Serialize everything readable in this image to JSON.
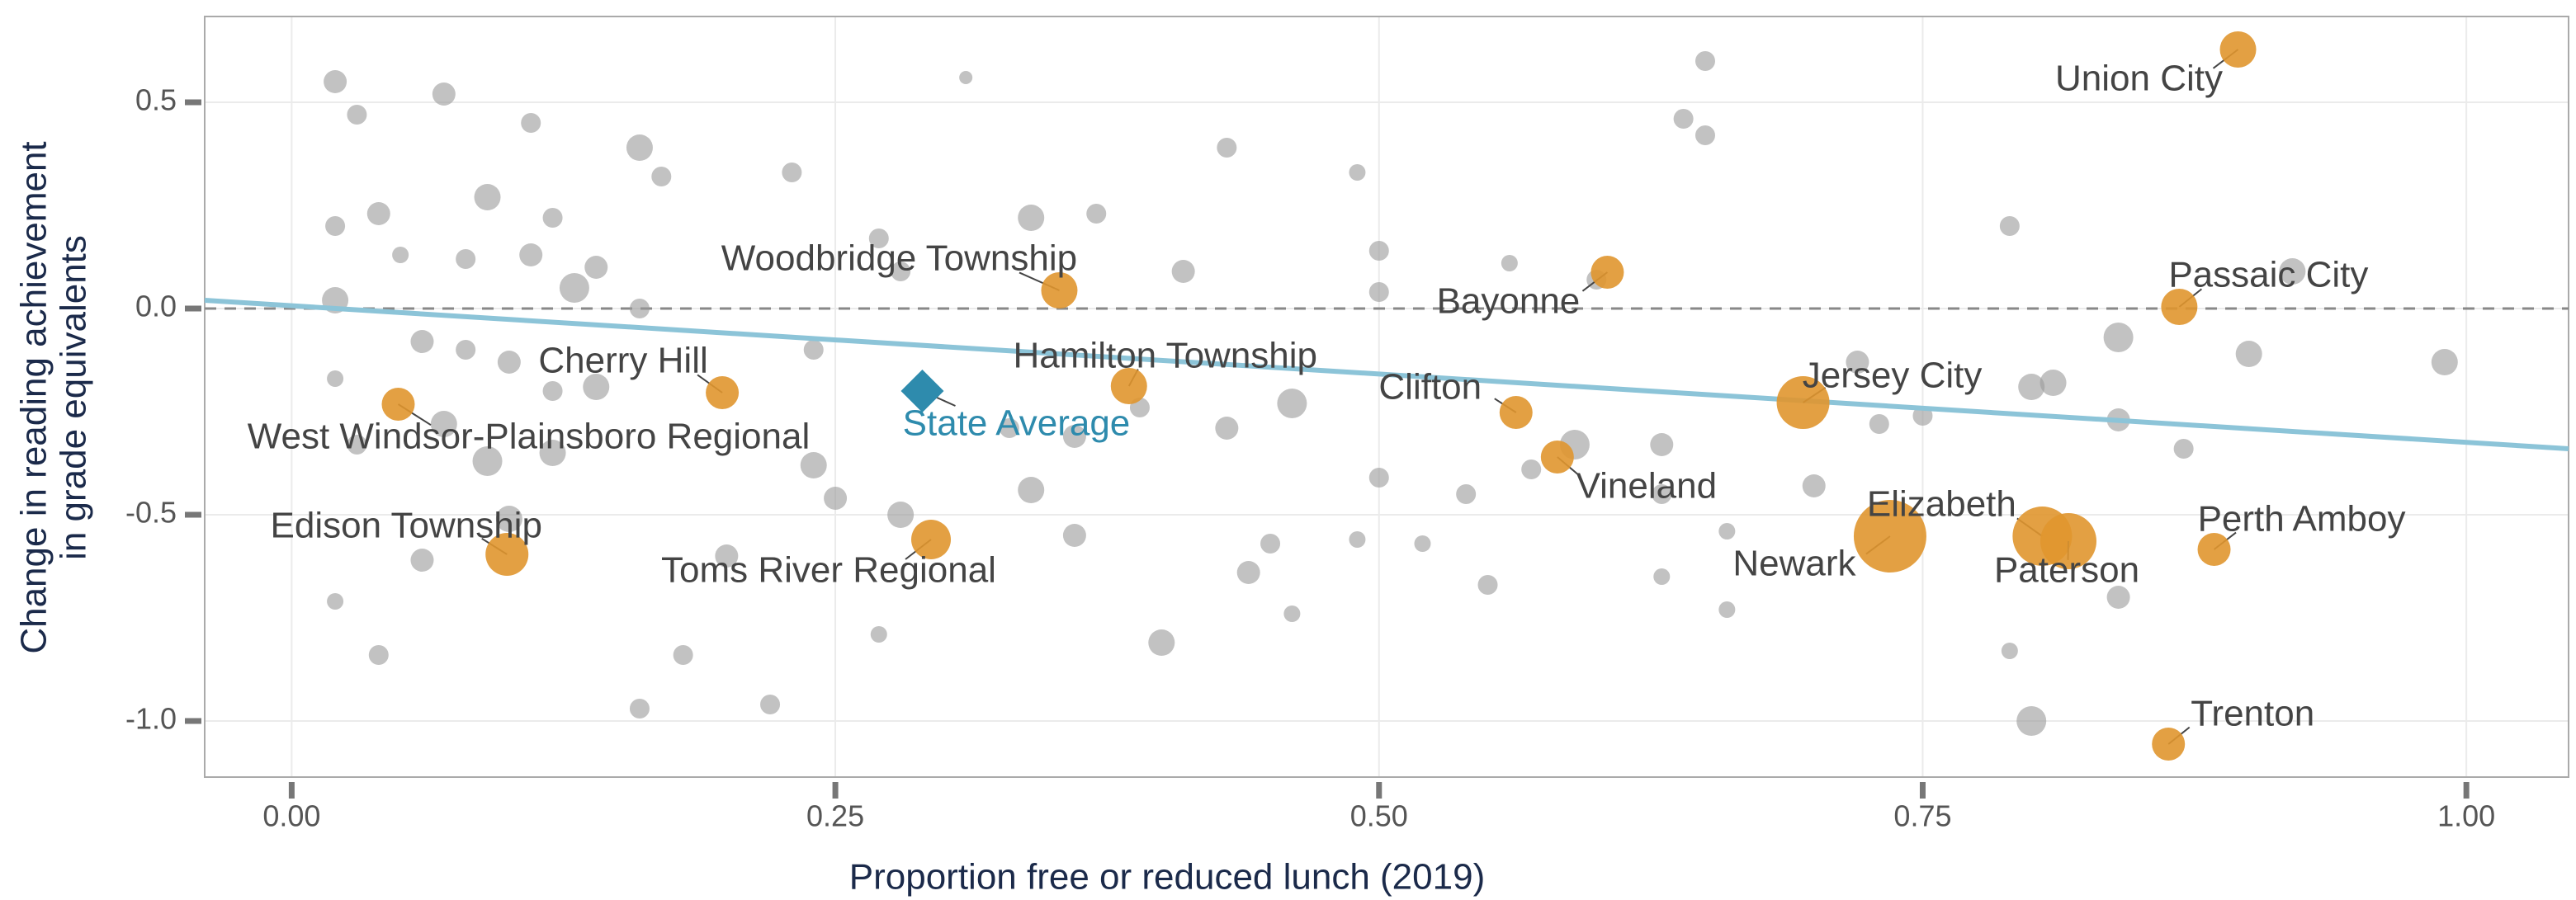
{
  "chart_data": {
    "type": "scatter",
    "x_label": "Proportion free or reduced lunch (2019)",
    "y_label": [
      "Change in reading  achievement",
      "in grade equivalents"
    ],
    "xlim": [
      -0.04,
      1.047
    ],
    "ylim": [
      -1.136,
      0.708
    ],
    "xticks": [
      {
        "value": 0,
        "label": "0.00"
      },
      0.25,
      {
        "value": 0.5,
        "label": "0.50"
      },
      0.75,
      {
        "value": 1,
        "label": "1.00"
      }
    ],
    "yticks": [
      0.5,
      {
        "value": 0,
        "label": "0.0"
      },
      -0.5,
      {
        "value": -1,
        "label": "-1.0"
      }
    ],
    "grid": true,
    "reference_line": 0,
    "points": {
      "color": "#9a9a9a",
      "x": [
        0.02,
        0.03,
        0.07,
        0.09,
        0.11,
        0.16,
        0.17,
        0.02,
        0.04,
        0.05,
        0.08,
        0.11,
        0.12,
        0.14,
        0.16,
        0.13,
        0.02,
        0.06,
        0.08,
        0.1,
        0.12,
        0.14,
        0.02,
        0.03,
        0.07,
        0.09,
        0.12,
        0.1,
        0.06,
        0.02,
        0.04,
        0.18,
        0.16,
        0.22,
        0.2,
        0.24,
        0.25,
        0.28,
        0.27,
        0.24,
        0.27,
        0.28,
        0.23,
        0.31,
        0.34,
        0.37,
        0.41,
        0.43,
        0.49,
        0.5,
        0.5,
        0.33,
        0.34,
        0.36,
        0.36,
        0.39,
        0.43,
        0.44,
        0.4,
        0.45,
        0.46,
        0.46,
        0.49,
        0.5,
        0.54,
        0.55,
        0.56,
        0.6,
        0.64,
        0.65,
        0.65,
        0.59,
        0.63,
        0.63,
        0.66,
        0.66,
        0.63,
        0.72,
        0.7,
        0.73,
        0.75,
        0.79,
        0.8,
        0.81,
        0.79,
        0.8,
        0.84,
        0.84,
        0.84,
        0.87,
        0.9,
        0.92,
        0.99,
        0.52,
        0.57
      ],
      "y": [
        0.55,
        0.47,
        0.52,
        0.27,
        0.45,
        0.39,
        0.32,
        0.2,
        0.23,
        0.13,
        0.12,
        0.13,
        0.22,
        0.1,
        0.0,
        0.05,
        0.02,
        -0.08,
        -0.1,
        -0.13,
        -0.2,
        -0.19,
        -0.17,
        -0.33,
        -0.28,
        -0.37,
        -0.35,
        -0.51,
        -0.61,
        -0.71,
        -0.84,
        -0.84,
        -0.97,
        -0.96,
        -0.6,
        -0.38,
        -0.46,
        -0.5,
        -0.79,
        -0.1,
        0.17,
        0.09,
        0.33,
        0.56,
        0.22,
        0.23,
        0.09,
        0.39,
        0.33,
        0.14,
        0.04,
        -0.29,
        -0.44,
        -0.55,
        -0.31,
        -0.24,
        -0.29,
        -0.64,
        -0.81,
        -0.57,
        -0.23,
        -0.74,
        -0.56,
        -0.41,
        -0.45,
        -0.67,
        0.11,
        0.07,
        0.46,
        0.6,
        0.42,
        -0.33,
        -0.33,
        -0.45,
        -0.54,
        -0.73,
        -0.65,
        -0.13,
        -0.43,
        -0.28,
        -0.26,
        0.2,
        -0.19,
        -0.18,
        -0.83,
        -1.0,
        -0.07,
        -0.27,
        -0.7,
        -0.34,
        -0.11,
        0.09,
        -0.13,
        -0.57,
        -0.39
      ],
      "sizes": [
        7,
        6,
        7,
        8,
        6,
        8,
        6,
        6,
        7,
        5,
        6,
        7,
        6,
        7,
        6,
        9,
        8,
        7,
        6,
        7,
        6,
        8,
        5,
        6,
        8,
        9,
        8,
        8,
        7,
        5,
        6,
        6,
        6,
        6,
        7,
        8,
        7,
        8,
        5,
        6,
        6,
        6,
        6,
        4,
        8,
        6,
        7,
        6,
        5,
        6,
        6,
        6,
        8,
        7,
        7,
        6,
        7,
        7,
        8,
        6,
        9,
        5,
        5,
        6,
        6,
        6,
        5,
        6,
        6,
        6,
        6,
        9,
        7,
        6,
        5,
        5,
        5,
        7,
        7,
        6,
        6,
        6,
        8,
        8,
        5,
        9,
        9,
        7,
        7,
        6,
        8,
        8,
        8,
        5,
        6
      ]
    },
    "highlighted": {
      "color": "#e0962f",
      "labels": [
        "Union City",
        "Passaic City",
        "Woodbridge Township",
        "Bayonne",
        "Hamilton Township",
        "Cherry Hill",
        "West Windsor-Plainsboro Regional",
        "Clifton",
        "Jersey City",
        "Vineland",
        "Newark",
        "Elizabeth",
        "Paterson",
        "Perth Amboy",
        "Edison Township",
        "Toms River Regional",
        "Trenton"
      ],
      "x": [
        0.895,
        0.868,
        0.353,
        0.605,
        0.385,
        0.198,
        0.049,
        0.563,
        0.695,
        0.582,
        0.735,
        0.805,
        0.817,
        0.884,
        0.099,
        0.294,
        0.863
      ],
      "y": [
        0.628,
        0.004,
        0.044,
        0.088,
        -0.188,
        -0.204,
        -0.232,
        -0.252,
        -0.228,
        -0.36,
        -0.552,
        -0.552,
        -0.564,
        -0.584,
        -0.596,
        -0.56,
        -1.056
      ],
      "sizes": [
        11,
        11,
        11,
        10,
        11,
        10,
        10,
        10,
        16,
        10,
        22,
        18,
        17,
        10,
        13,
        12,
        10
      ]
    },
    "state_average": {
      "label": "State Average",
      "x": 0.29,
      "y": -0.2,
      "color": "#2e8bad"
    },
    "trend": {
      "x": [
        -0.04,
        1.047
      ],
      "y": [
        0.02,
        -0.34
      ],
      "color": "#8cc4d8"
    }
  }
}
